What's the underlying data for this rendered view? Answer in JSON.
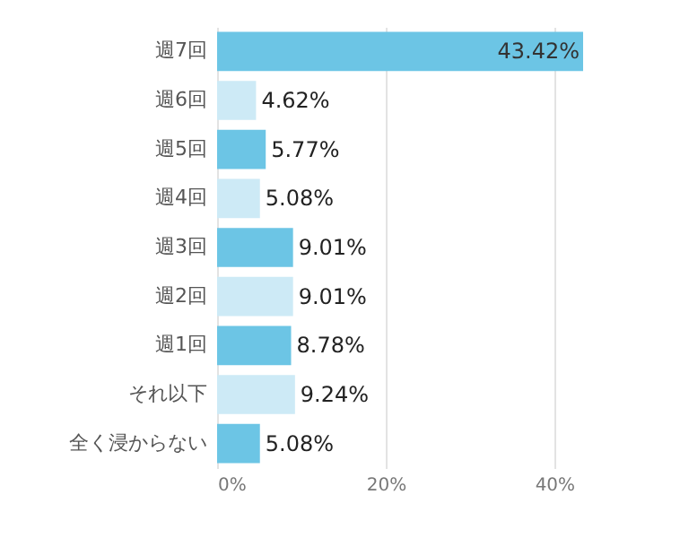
{
  "chart_data": {
    "type": "bar",
    "orientation": "horizontal",
    "categories": [
      "週7回",
      "週6回",
      "週5回",
      "週4回",
      "週3回",
      "週2回",
      "週1回",
      "それ以下",
      "全く浸からない"
    ],
    "values": [
      43.42,
      4.62,
      5.77,
      5.08,
      9.01,
      9.01,
      8.78,
      9.24,
      5.08
    ],
    "colors": [
      "#6cc5e5",
      "#cdeaf6",
      "#6cc5e5",
      "#cdeaf6",
      "#6cc5e5",
      "#cdeaf6",
      "#6cc5e5",
      "#cdeaf6",
      "#6cc5e5"
    ],
    "value_labels": [
      "43.42%",
      "4.62%",
      "5.77%",
      "5.08%",
      "9.01%",
      "9.01%",
      "8.78%",
      "9.24%",
      "5.08%"
    ],
    "xlim": [
      0,
      43.42
    ],
    "xticks": [
      {
        "value": 0,
        "label": "0%"
      },
      {
        "value": 20,
        "label": "20%"
      },
      {
        "value": 40,
        "label": "40%"
      }
    ],
    "grid": "x"
  }
}
